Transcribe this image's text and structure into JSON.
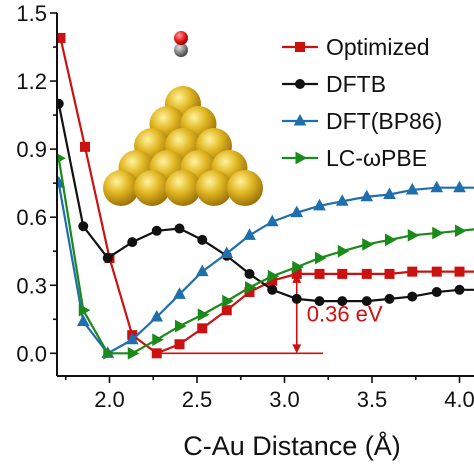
{
  "chart_data": {
    "type": "line",
    "xlabel": "C-Au Distance (Å)",
    "ylabel": "",
    "xlim": [
      1.7,
      4.1
    ],
    "ylim": [
      -0.1,
      1.5
    ],
    "x_ticks": [
      {
        "value": 2.0,
        "label": "2.0"
      },
      {
        "value": 2.5,
        "label": "2.5"
      },
      {
        "value": 3.0,
        "label": "3.0"
      },
      {
        "value": 3.5,
        "label": "3.5"
      },
      {
        "value": 4.0,
        "label": "4.0"
      }
    ],
    "y_ticks": [
      {
        "value": 0.0,
        "label": "0.0"
      },
      {
        "value": 0.3,
        "label": "0.3"
      },
      {
        "value": 0.6,
        "label": "0.6"
      },
      {
        "value": 0.9,
        "label": "0.9"
      },
      {
        "value": 1.2,
        "label": "1.2"
      },
      {
        "value": 1.5,
        "label": "1.5"
      }
    ],
    "grid": false,
    "legend_position": "top-right",
    "series": [
      {
        "name": "Optimized",
        "color": "#cc1111",
        "marker": "square",
        "x": [
          1.72,
          1.86,
          2.0,
          2.13,
          2.27,
          2.4,
          2.53,
          2.67,
          2.8,
          2.93,
          3.07,
          3.2,
          3.33,
          3.47,
          3.6,
          3.73,
          3.87,
          4.0,
          4.13
        ],
        "y": [
          1.39,
          0.91,
          0.42,
          0.08,
          0.0,
          0.04,
          0.11,
          0.19,
          0.27,
          0.32,
          0.35,
          0.35,
          0.35,
          0.35,
          0.35,
          0.36,
          0.36,
          0.36,
          0.36
        ]
      },
      {
        "name": "DFTB",
        "color": "#111111",
        "marker": "circle",
        "x": [
          1.71,
          1.85,
          1.99,
          2.13,
          2.27,
          2.4,
          2.53,
          2.67,
          2.8,
          2.93,
          3.07,
          3.2,
          3.33,
          3.47,
          3.6,
          3.73,
          3.87,
          4.0,
          4.13
        ],
        "y": [
          1.1,
          0.56,
          0.42,
          0.49,
          0.54,
          0.55,
          0.5,
          0.43,
          0.35,
          0.28,
          0.24,
          0.23,
          0.23,
          0.23,
          0.24,
          0.25,
          0.27,
          0.28,
          0.28
        ]
      },
      {
        "name": "DFT(BP86)",
        "color": "#1f6fae",
        "marker": "triangle-up",
        "x": [
          1.71,
          1.85,
          1.99,
          2.13,
          2.27,
          2.4,
          2.53,
          2.67,
          2.8,
          2.93,
          3.07,
          3.2,
          3.33,
          3.47,
          3.6,
          3.73,
          3.87,
          4.0,
          4.13
        ],
        "y": [
          0.75,
          0.14,
          0.0,
          0.06,
          0.16,
          0.26,
          0.36,
          0.44,
          0.52,
          0.58,
          0.62,
          0.65,
          0.67,
          0.69,
          0.7,
          0.72,
          0.73,
          0.73,
          0.73
        ]
      },
      {
        "name": "LC-ωPBE",
        "color": "#1a8a1a",
        "marker": "triangle-right",
        "x": [
          1.71,
          1.85,
          1.99,
          2.13,
          2.27,
          2.4,
          2.53,
          2.67,
          2.8,
          2.93,
          3.07,
          3.2,
          3.33,
          3.47,
          3.6,
          3.73,
          3.87,
          4.0,
          4.13
        ],
        "y": [
          0.86,
          0.19,
          0.0,
          0.0,
          0.06,
          0.12,
          0.17,
          0.23,
          0.29,
          0.34,
          0.38,
          0.42,
          0.45,
          0.48,
          0.5,
          0.52,
          0.53,
          0.54,
          0.55
        ]
      }
    ],
    "annotations": [
      {
        "text": "0.36 eV",
        "color": "#cc1111",
        "x": 3.07,
        "y_from": 0.0,
        "y_to": 0.35,
        "line_x_from": 2.27,
        "line_x_to": 3.22
      }
    ],
    "inset": "CO-on-gold-pyramid-illustration"
  }
}
